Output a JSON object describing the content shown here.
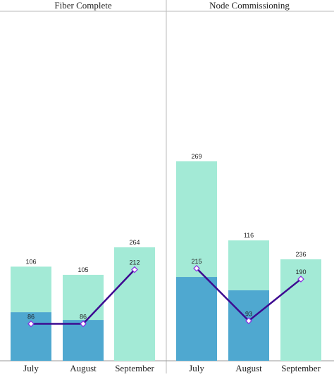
{
  "chart_data": [
    {
      "type": "bar",
      "title": "Fiber Complete",
      "categories": [
        "July",
        "August",
        "September"
      ],
      "ylim": [
        0,
        790
      ],
      "series": [
        {
          "color": "#4fa8d0",
          "values": [
            113,
            95,
            null
          ]
        },
        {
          "color": "#a3ead6",
          "values": [
            106,
            105,
            264
          ]
        },
        {
          "type": "line",
          "color": "#3d0a91",
          "values": [
            86,
            86,
            212
          ]
        }
      ]
    },
    {
      "type": "bar",
      "title": "Node Commissioning",
      "categories": [
        "July",
        "August",
        "September"
      ],
      "ylim": [
        0,
        790
      ],
      "series": [
        {
          "color": "#4fa8d0",
          "values": [
            195,
            164,
            null
          ]
        },
        {
          "color": "#a3ead6",
          "values": [
            269,
            116,
            236
          ]
        },
        {
          "type": "line",
          "color": "#3d0a91",
          "values": [
            215,
            93,
            190
          ]
        }
      ]
    }
  ]
}
